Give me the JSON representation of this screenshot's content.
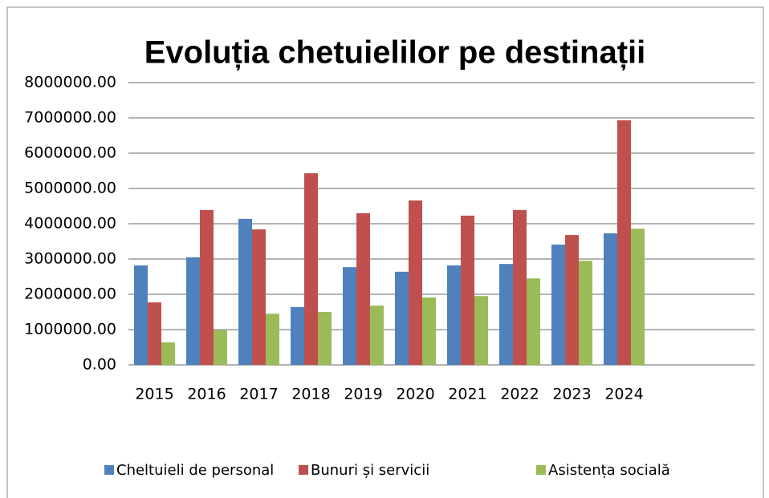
{
  "chart_data": {
    "type": "bar",
    "title": "Evoluția chetuielilor pe destinații",
    "categories": [
      "2015",
      "2016",
      "2017",
      "2018",
      "2019",
      "2020",
      "2021",
      "2022",
      "2023",
      "2024",
      null,
      null
    ],
    "series": [
      {
        "name": "Cheltuieli de personal",
        "color": "#4f81bd",
        "values": [
          2820000,
          3050000,
          4140000,
          1640000,
          2770000,
          2640000,
          2820000,
          2860000,
          3410000,
          3730000,
          null,
          null
        ]
      },
      {
        "name": "Bunuri și servicii",
        "color": "#c0504d",
        "values": [
          1770000,
          4390000,
          3840000,
          5430000,
          4300000,
          4660000,
          4230000,
          4390000,
          3680000,
          6930000,
          null,
          null
        ]
      },
      {
        "name": "Asistența socială",
        "color": "#9bbb59",
        "values": [
          640000,
          980000,
          1450000,
          1500000,
          1680000,
          1910000,
          1950000,
          2450000,
          2950000,
          3860000,
          null,
          null
        ]
      }
    ],
    "ylim": [
      0,
      8000000
    ],
    "yticks": [
      {
        "value": 0,
        "label": "0.00"
      },
      {
        "value": 1000000,
        "label": "1000000.00"
      },
      {
        "value": 2000000,
        "label": "2000000.00"
      },
      {
        "value": 3000000,
        "label": "3000000.00"
      },
      {
        "value": 4000000,
        "label": "4000000.00"
      },
      {
        "value": 5000000,
        "label": "5000000.00"
      },
      {
        "value": 6000000,
        "label": "6000000.00"
      },
      {
        "value": 7000000,
        "label": "7000000.00"
      },
      {
        "value": 8000000,
        "label": "8000000.00"
      }
    ],
    "grid": true,
    "legend": "bottom"
  }
}
